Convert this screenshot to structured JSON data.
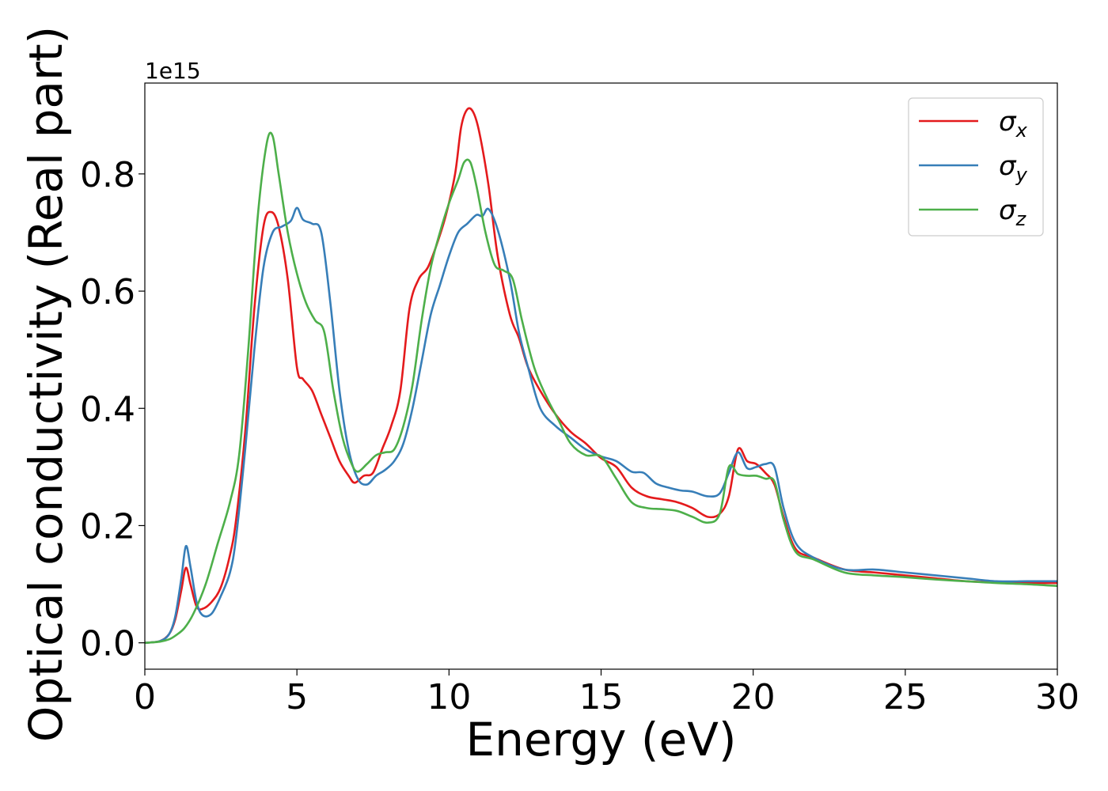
{
  "chart_data": {
    "type": "line",
    "title": "",
    "xlabel": "Energy (eV)",
    "ylabel": "Optical conductivity (Real part)",
    "y_offset_text": "1e15",
    "xlim": [
      0,
      30
    ],
    "ylim": [
      -0.045,
      0.955
    ],
    "xticks": [
      0,
      5,
      10,
      15,
      20,
      25,
      30
    ],
    "xtick_labels": [
      "0",
      "5",
      "10",
      "15",
      "20",
      "25",
      "30"
    ],
    "yticks": [
      0.0,
      0.2,
      0.4,
      0.6,
      0.8
    ],
    "ytick_labels": [
      "0.0",
      "0.2",
      "0.4",
      "0.6",
      "0.8"
    ],
    "grid": false,
    "legend_position": "top-right",
    "series": [
      {
        "name": "σx",
        "base": "σ",
        "sub": "x",
        "color": "#e41a1c",
        "x": [
          0,
          0.5,
          0.8,
          1.0,
          1.2,
          1.35,
          1.5,
          1.7,
          1.9,
          2.2,
          2.5,
          2.8,
          3.0,
          3.3,
          3.6,
          3.9,
          4.15,
          4.4,
          4.7,
          5.0,
          5.2,
          5.5,
          5.8,
          6.1,
          6.4,
          6.7,
          6.9,
          7.2,
          7.5,
          7.8,
          8.1,
          8.4,
          8.7,
          9.0,
          9.3,
          9.6,
          9.9,
          10.2,
          10.4,
          10.6,
          10.8,
          11.0,
          11.3,
          11.6,
          12.0,
          12.3,
          12.6,
          13.0,
          13.5,
          14.0,
          14.5,
          15.0,
          15.5,
          16.0,
          16.5,
          17.0,
          17.5,
          18.0,
          18.5,
          18.9,
          19.2,
          19.5,
          19.8,
          20.1,
          20.4,
          20.7,
          21.0,
          21.4,
          22.0,
          23.0,
          24.0,
          25.0,
          26.0,
          27.0,
          28.0,
          29.0,
          30.0
        ],
        "y": [
          0.0,
          0.003,
          0.015,
          0.04,
          0.09,
          0.128,
          0.1,
          0.062,
          0.058,
          0.07,
          0.095,
          0.15,
          0.21,
          0.36,
          0.57,
          0.71,
          0.735,
          0.71,
          0.62,
          0.47,
          0.45,
          0.43,
          0.39,
          0.35,
          0.31,
          0.285,
          0.273,
          0.285,
          0.29,
          0.33,
          0.37,
          0.43,
          0.57,
          0.62,
          0.64,
          0.68,
          0.73,
          0.8,
          0.88,
          0.91,
          0.905,
          0.87,
          0.78,
          0.66,
          0.56,
          0.52,
          0.47,
          0.43,
          0.39,
          0.36,
          0.34,
          0.315,
          0.3,
          0.265,
          0.25,
          0.245,
          0.24,
          0.23,
          0.215,
          0.22,
          0.25,
          0.33,
          0.31,
          0.305,
          0.29,
          0.27,
          0.215,
          0.16,
          0.145,
          0.125,
          0.12,
          0.115,
          0.11,
          0.105,
          0.103,
          0.102,
          0.102
        ]
      },
      {
        "name": "σy",
        "base": "σ",
        "sub": "y",
        "color": "#377eb8",
        "x": [
          0,
          0.5,
          0.8,
          1.0,
          1.2,
          1.35,
          1.5,
          1.7,
          1.9,
          2.2,
          2.5,
          2.8,
          3.0,
          3.3,
          3.6,
          3.9,
          4.2,
          4.5,
          4.8,
          5.0,
          5.2,
          5.5,
          5.8,
          6.1,
          6.4,
          6.7,
          7.0,
          7.3,
          7.6,
          7.9,
          8.2,
          8.5,
          8.8,
          9.1,
          9.4,
          9.7,
          10.0,
          10.3,
          10.6,
          10.9,
          11.1,
          11.3,
          11.6,
          12.0,
          12.3,
          12.6,
          13.0,
          13.5,
          14.0,
          14.5,
          15.0,
          15.5,
          16.0,
          16.4,
          16.8,
          17.2,
          17.6,
          18.0,
          18.5,
          18.9,
          19.2,
          19.5,
          19.8,
          20.1,
          20.4,
          20.7,
          21.0,
          21.4,
          22.0,
          23.0,
          24.0,
          25.0,
          26.0,
          27.0,
          28.0,
          29.0,
          30.0
        ],
        "y": [
          0.0,
          0.003,
          0.015,
          0.045,
          0.11,
          0.165,
          0.13,
          0.07,
          0.047,
          0.05,
          0.08,
          0.12,
          0.18,
          0.33,
          0.5,
          0.64,
          0.7,
          0.71,
          0.72,
          0.742,
          0.722,
          0.715,
          0.7,
          0.58,
          0.43,
          0.33,
          0.28,
          0.27,
          0.285,
          0.295,
          0.31,
          0.34,
          0.4,
          0.48,
          0.56,
          0.61,
          0.66,
          0.7,
          0.715,
          0.73,
          0.728,
          0.74,
          0.705,
          0.62,
          0.53,
          0.47,
          0.4,
          0.37,
          0.35,
          0.33,
          0.318,
          0.31,
          0.292,
          0.29,
          0.272,
          0.265,
          0.26,
          0.258,
          0.25,
          0.255,
          0.29,
          0.325,
          0.298,
          0.3,
          0.305,
          0.3,
          0.23,
          0.17,
          0.145,
          0.125,
          0.125,
          0.12,
          0.115,
          0.11,
          0.105,
          0.105,
          0.105
        ]
      },
      {
        "name": "σz",
        "base": "σ",
        "sub": "z",
        "color": "#4daf4a",
        "x": [
          0,
          0.5,
          0.8,
          1.0,
          1.3,
          1.6,
          2.0,
          2.4,
          2.8,
          3.1,
          3.4,
          3.7,
          4.0,
          4.2,
          4.4,
          4.7,
          5.0,
          5.3,
          5.6,
          5.9,
          6.2,
          6.5,
          6.8,
          7.0,
          7.3,
          7.6,
          7.9,
          8.2,
          8.5,
          8.8,
          9.1,
          9.4,
          9.7,
          10.0,
          10.3,
          10.5,
          10.7,
          10.9,
          11.2,
          11.5,
          11.8,
          12.1,
          12.4,
          12.8,
          13.2,
          13.6,
          14.0,
          14.5,
          15.0,
          15.5,
          16.0,
          16.5,
          17.0,
          17.5,
          18.0,
          18.5,
          18.9,
          19.2,
          19.5,
          19.8,
          20.1,
          20.4,
          20.7,
          21.0,
          21.4,
          22.0,
          23.0,
          24.0,
          25.0,
          26.0,
          27.0,
          28.0,
          29.0,
          30.0
        ],
        "y": [
          0.0,
          0.002,
          0.006,
          0.012,
          0.025,
          0.05,
          0.1,
          0.17,
          0.24,
          0.32,
          0.5,
          0.72,
          0.85,
          0.865,
          0.8,
          0.7,
          0.63,
          0.58,
          0.55,
          0.53,
          0.43,
          0.35,
          0.305,
          0.292,
          0.305,
          0.32,
          0.325,
          0.33,
          0.37,
          0.44,
          0.55,
          0.64,
          0.7,
          0.75,
          0.79,
          0.82,
          0.82,
          0.78,
          0.7,
          0.645,
          0.635,
          0.62,
          0.55,
          0.47,
          0.42,
          0.38,
          0.34,
          0.32,
          0.318,
          0.28,
          0.24,
          0.23,
          0.228,
          0.225,
          0.215,
          0.205,
          0.22,
          0.3,
          0.288,
          0.285,
          0.285,
          0.28,
          0.275,
          0.21,
          0.155,
          0.142,
          0.12,
          0.115,
          0.112,
          0.108,
          0.105,
          0.102,
          0.1,
          0.097
        ]
      }
    ]
  }
}
